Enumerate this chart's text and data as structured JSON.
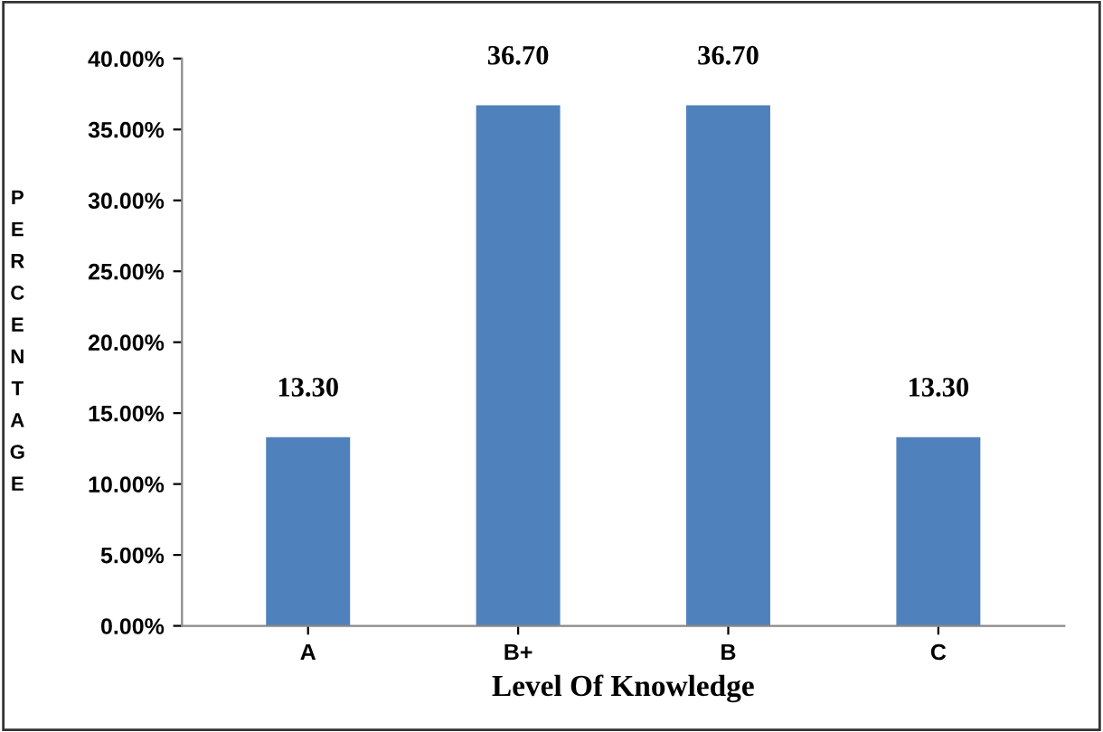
{
  "chart_data": {
    "type": "bar",
    "xlabel": "Level Of Knowledge",
    "ylabel": "PERCENTAGE",
    "categories": [
      "A",
      "B+",
      "B",
      "C"
    ],
    "values": [
      13.3,
      36.7,
      36.7,
      13.3
    ],
    "value_labels": [
      "13.30",
      "36.70",
      "36.70",
      "13.30"
    ],
    "color": "#4f81bd",
    "ylim": [
      0,
      40
    ],
    "yticks": [
      {
        "value": 0,
        "label": "0.00%"
      },
      {
        "value": 5,
        "label": "5.00%"
      },
      {
        "value": 10,
        "label": "10.00%"
      },
      {
        "value": 15,
        "label": "15.00%"
      },
      {
        "value": 20,
        "label": "20.00%"
      },
      {
        "value": 25,
        "label": "25.00%"
      },
      {
        "value": 30,
        "label": "30.00%"
      },
      {
        "value": 35,
        "label": "35.00%"
      },
      {
        "value": 40,
        "label": "40.00%"
      }
    ],
    "grid": false,
    "legend": false
  }
}
